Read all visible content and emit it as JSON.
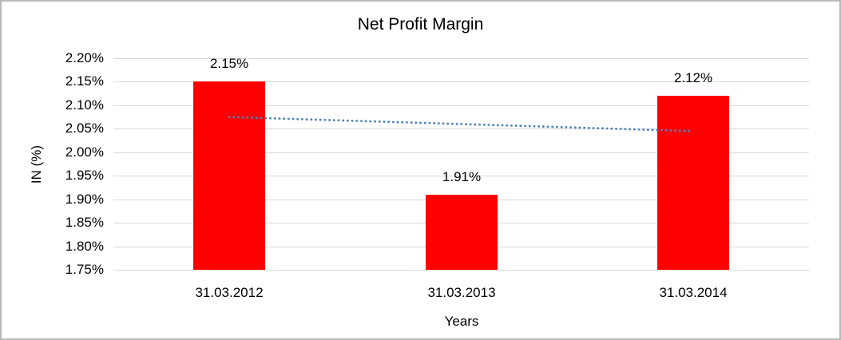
{
  "chart_data": {
    "type": "bar",
    "title": "Net Profit Margin",
    "xlabel": "Years",
    "ylabel": "IN (%)",
    "categories": [
      "31.03.2012",
      "31.03.2013",
      "31.03.2014"
    ],
    "values": [
      2.15,
      1.91,
      2.12
    ],
    "value_labels": [
      "2.15%",
      "1.91%",
      "2.12%"
    ],
    "ylim": [
      1.75,
      2.2
    ],
    "ytick_step": 0.05,
    "ytick_labels": [
      "2.20%",
      "2.15%",
      "2.10%",
      "2.05%",
      "2.00%",
      "1.95%",
      "1.90%",
      "1.85%",
      "1.80%",
      "1.75%"
    ],
    "grid": true,
    "legend_position": "none",
    "colors": {
      "bar": "#ff0000",
      "gridline": "#d9d9d9",
      "trendline": "#4f81bd",
      "text": "#000000",
      "frame_border": "#b9b9b9",
      "background": "#ffffff"
    },
    "trendline": {
      "type": "linear",
      "style": "dotted",
      "start_value": 2.075,
      "end_value": 2.045
    }
  }
}
